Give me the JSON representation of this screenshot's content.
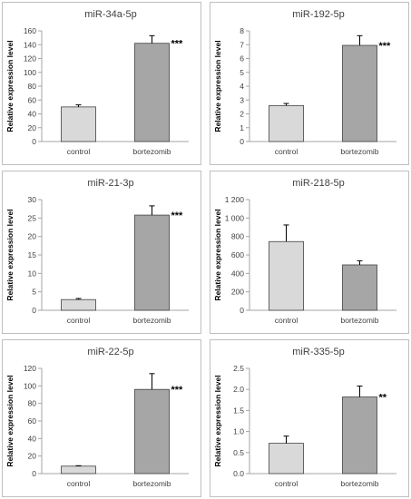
{
  "chart_data": [
    {
      "type": "bar",
      "title": "miR-34a-5p",
      "ylabel": "Relative expression level",
      "categories": [
        "control",
        "bortezomib"
      ],
      "values": [
        50,
        142
      ],
      "errors": [
        3,
        11
      ],
      "significance": "***",
      "ylim": [
        0,
        160
      ],
      "yticks": [
        0,
        20,
        40,
        60,
        80,
        100,
        120,
        140,
        160
      ],
      "ytick_labels": [
        "0",
        "20",
        "40",
        "60",
        "80",
        "100",
        "120",
        "140",
        "160"
      ],
      "colors": [
        "#d9d9d9",
        "#a6a6a6"
      ]
    },
    {
      "type": "bar",
      "title": "miR-192-5p",
      "ylabel": "Relative expression level",
      "categories": [
        "control",
        "bortezomib"
      ],
      "values": [
        2.6,
        6.95
      ],
      "errors": [
        0.15,
        0.7
      ],
      "significance": "***",
      "ylim": [
        0,
        8
      ],
      "yticks": [
        0,
        1,
        2,
        3,
        4,
        5,
        6,
        7,
        8
      ],
      "ytick_labels": [
        "0",
        "1",
        "2",
        "3",
        "4",
        "5",
        "6",
        "7",
        "8"
      ],
      "colors": [
        "#d9d9d9",
        "#a6a6a6"
      ]
    },
    {
      "type": "bar",
      "title": "miR-21-3p",
      "ylabel": "Relative expression level",
      "categories": [
        "control",
        "bortezomib"
      ],
      "values": [
        2.9,
        25.8
      ],
      "errors": [
        0.3,
        2.5
      ],
      "significance": "***",
      "ylim": [
        0,
        30
      ],
      "yticks": [
        0,
        5,
        10,
        15,
        20,
        25,
        30
      ],
      "ytick_labels": [
        "0",
        "5",
        "10",
        "15",
        "20",
        "25",
        "30"
      ],
      "colors": [
        "#d9d9d9",
        "#a6a6a6"
      ]
    },
    {
      "type": "bar",
      "title": "miR-218-5p",
      "ylabel": "Relative expression level",
      "categories": [
        "control",
        "bortezomib"
      ],
      "values": [
        745,
        492
      ],
      "errors": [
        180,
        45
      ],
      "significance": "",
      "ylim": [
        0,
        1200
      ],
      "yticks": [
        0,
        200,
        400,
        600,
        800,
        1000,
        1200
      ],
      "ytick_labels": [
        "0",
        "200",
        "400",
        "600",
        "800",
        "1 000",
        "1 200"
      ],
      "colors": [
        "#d9d9d9",
        "#a6a6a6"
      ]
    },
    {
      "type": "bar",
      "title": "miR-22-5p",
      "ylabel": "Relative expression level",
      "categories": [
        "control",
        "bortezomib"
      ],
      "values": [
        8.5,
        96
      ],
      "errors": [
        0.5,
        18
      ],
      "significance": "***",
      "ylim": [
        0,
        120
      ],
      "yticks": [
        0,
        20,
        40,
        60,
        80,
        100,
        120
      ],
      "ytick_labels": [
        "0",
        "20",
        "40",
        "60",
        "80",
        "100",
        "120"
      ],
      "colors": [
        "#d9d9d9",
        "#a6a6a6"
      ]
    },
    {
      "type": "bar",
      "title": "miR-335-5p",
      "ylabel": "Relative expression level",
      "categories": [
        "control",
        "bortezomib"
      ],
      "values": [
        0.72,
        1.82
      ],
      "errors": [
        0.17,
        0.26
      ],
      "significance": "**",
      "ylim": [
        0,
        2.5
      ],
      "yticks": [
        0,
        0.5,
        1.0,
        1.5,
        2.0,
        2.5
      ],
      "ytick_labels": [
        "0.0",
        "0.5",
        "1.0",
        "1.5",
        "2.0",
        "2.5"
      ],
      "colors": [
        "#d9d9d9",
        "#a6a6a6"
      ]
    }
  ]
}
